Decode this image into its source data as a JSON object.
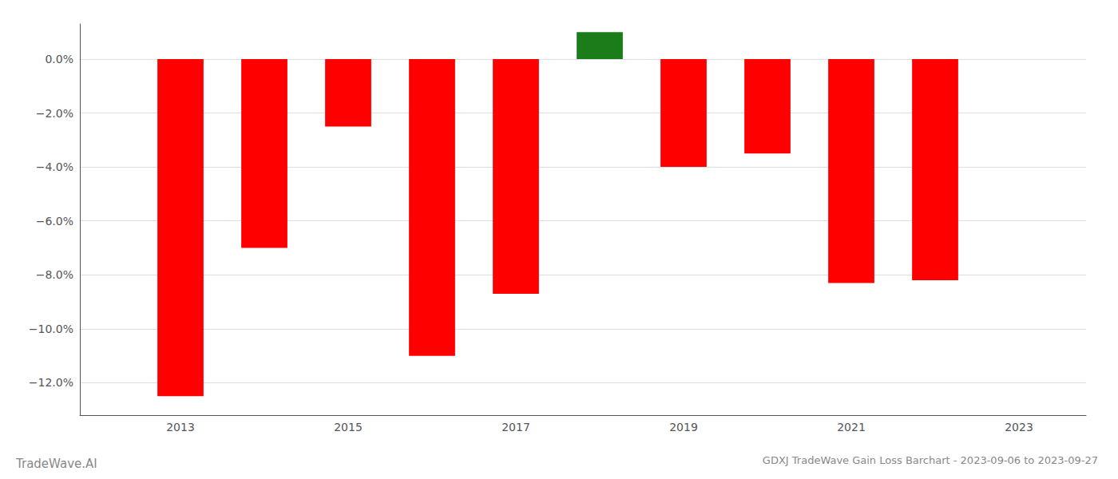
{
  "chart_data": {
    "type": "bar",
    "title": "GDXJ TradeWave Gain Loss Barchart - 2023-09-06 to 2023-09-27",
    "annotations": [
      "TradeWave.AI"
    ],
    "x": [
      2013,
      2014,
      2015,
      2016,
      2017,
      2018,
      2019,
      2020,
      2021,
      2022
    ],
    "values": [
      -12.5,
      -7.0,
      -2.5,
      -11.0,
      -8.7,
      1.0,
      -4.0,
      -3.5,
      -8.3,
      -8.2
    ],
    "colors": [
      "#ff0000",
      "#ff0000",
      "#ff0000",
      "#ff0000",
      "#ff0000",
      "#1a7d1a",
      "#ff0000",
      "#ff0000",
      "#ff0000",
      "#ff0000"
    ],
    "xlim": [
      2011.8,
      2023.8
    ],
    "xticks": [
      2013,
      2015,
      2017,
      2019,
      2021,
      2023
    ],
    "ylim": [
      -13.2,
      1.3
    ],
    "yticks": [
      {
        "value": 0.0,
        "label": "0.0%"
      },
      {
        "value": -2.0,
        "label": "−2.0%"
      },
      {
        "value": -4.0,
        "label": "−4.0%"
      },
      {
        "value": -6.0,
        "label": "−6.0%"
      },
      {
        "value": -8.0,
        "label": "−8.0%"
      },
      {
        "value": -10.0,
        "label": "−10.0%"
      },
      {
        "value": -12.0,
        "label": "−12.0%"
      }
    ],
    "grid": true
  }
}
